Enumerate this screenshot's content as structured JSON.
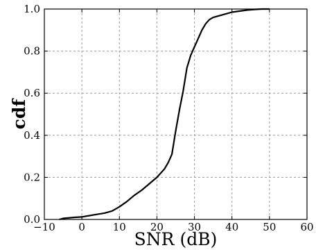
{
  "chart_data": {
    "type": "line",
    "title": "",
    "xlabel": "SNR (dB)",
    "ylabel": "cdf",
    "xlim": [
      -10,
      60
    ],
    "ylim": [
      0.0,
      1.0
    ],
    "x_ticks": [
      -10,
      0,
      10,
      20,
      30,
      40,
      50,
      60
    ],
    "y_ticks": [
      0.0,
      0.2,
      0.4,
      0.6,
      0.8,
      1.0
    ],
    "x_tick_labels": [
      "−10",
      "0",
      "10",
      "20",
      "30",
      "40",
      "50",
      "60"
    ],
    "y_tick_labels": [
      "0.0",
      "0.2",
      "0.4",
      "0.6",
      "0.8",
      "1.0"
    ],
    "grid": true,
    "series": [
      {
        "color": "#000000",
        "x": [
          -6,
          -5,
          -2,
          0,
          2,
          4,
          6,
          8,
          10,
          12,
          14,
          16,
          18,
          20,
          22,
          23,
          24,
          25,
          26,
          27,
          28,
          29,
          30,
          31,
          32,
          33,
          34,
          35,
          36,
          38,
          40,
          42,
          44,
          46,
          48,
          50
        ],
        "y": [
          0.0,
          0.005,
          0.01,
          0.012,
          0.018,
          0.024,
          0.03,
          0.04,
          0.06,
          0.085,
          0.115,
          0.14,
          0.17,
          0.2,
          0.24,
          0.27,
          0.31,
          0.42,
          0.52,
          0.61,
          0.72,
          0.78,
          0.82,
          0.86,
          0.9,
          0.93,
          0.95,
          0.96,
          0.965,
          0.975,
          0.985,
          0.99,
          0.995,
          0.998,
          1.0,
          1.0
        ]
      }
    ]
  }
}
